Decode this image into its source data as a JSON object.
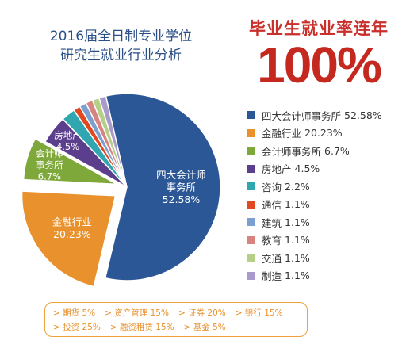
{
  "title": {
    "line1": "2016届全日制专业学位",
    "line2": "研究生就业行业分析"
  },
  "headline": {
    "text": "毕业生就业率连年",
    "big": "100%"
  },
  "chart_data": {
    "type": "pie",
    "start_angle_deg": -13,
    "explode": [
      "金融行业",
      "会计师事务所"
    ],
    "slices": [
      {
        "name": "四大会计师事务所",
        "value": 52.58,
        "value_label": "52.58%",
        "color": "#2b5797",
        "inner_label": [
          "四大会计师",
          "事务所",
          "52.58%"
        ]
      },
      {
        "name": "金融行业",
        "value": 20.23,
        "value_label": "20.23%",
        "color": "#e8912d",
        "inner_label": [
          "金融行业",
          "20.23%"
        ]
      },
      {
        "name": "会计师事务所",
        "value": 6.7,
        "value_label": "6.7%",
        "color": "#7fa83b",
        "inner_label": [
          "会计师",
          "事务所",
          "6.7%"
        ]
      },
      {
        "name": "房地产",
        "value": 4.5,
        "value_label": "4.5%",
        "color": "#5c3f8c",
        "inner_label": [
          "房地产",
          "4.5%"
        ]
      },
      {
        "name": "咨询",
        "value": 2.2,
        "value_label": "2.2%",
        "color": "#2fa6b0",
        "inner_label": []
      },
      {
        "name": "通信",
        "value": 1.1,
        "value_label": "1.1%",
        "color": "#e0481f",
        "inner_label": []
      },
      {
        "name": "建筑",
        "value": 1.1,
        "value_label": "1.1%",
        "color": "#7b9fd0",
        "inner_label": []
      },
      {
        "name": "教育",
        "value": 1.1,
        "value_label": "1.1%",
        "color": "#d7837f",
        "inner_label": []
      },
      {
        "name": "交通",
        "value": 1.1,
        "value_label": "1.1%",
        "color": "#b5cf86",
        "inner_label": []
      },
      {
        "name": "制造",
        "value": 1.1,
        "value_label": "1.1%",
        "color": "#a99acb",
        "inner_label": []
      }
    ],
    "finance_breakdown": [
      [
        "> 期货 5%",
        "> 资产管理 15%",
        "> 证券 20%",
        "> 银行 15%"
      ],
      [
        "> 投资 25%",
        "> 融资租赁 15%",
        "> 基金 5%"
      ]
    ]
  }
}
